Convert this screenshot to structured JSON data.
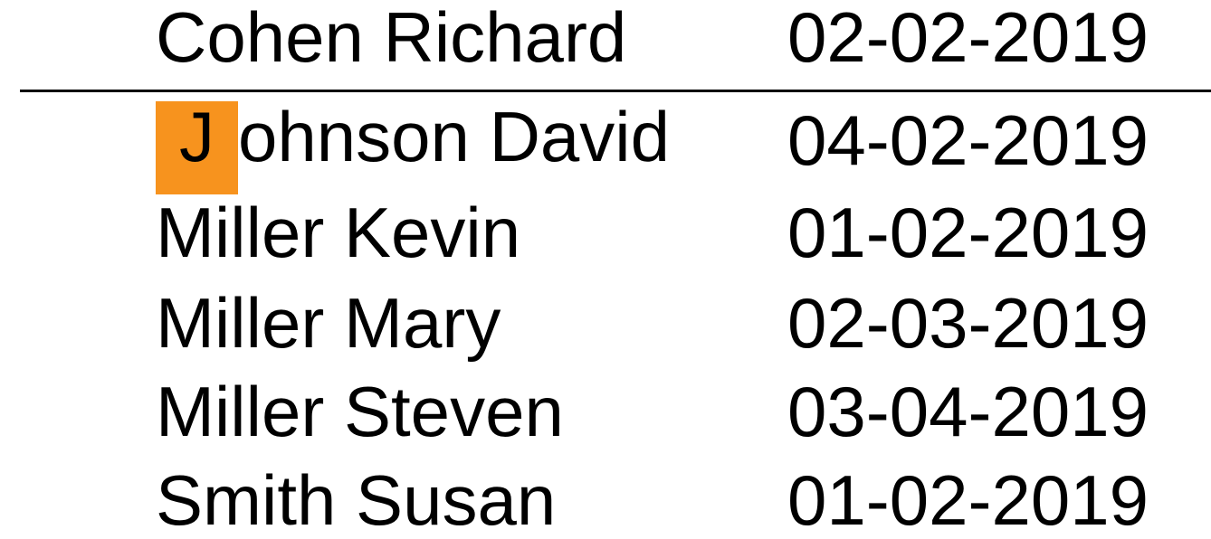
{
  "colors": {
    "highlight": "#f7931e",
    "text": "#000000"
  },
  "rows": [
    {
      "name": "Cohen Richard",
      "date": "02-02-2019"
    },
    {
      "name_first_letter": "J",
      "name_rest": "ohnson David",
      "date": "04-02-2019"
    },
    {
      "name": "Miller Kevin",
      "date": "01-02-2019"
    },
    {
      "name": "Miller Mary",
      "date": "02-03-2019"
    },
    {
      "name": "Miller Steven",
      "date": "03-04-2019"
    },
    {
      "name": "Smith Susan",
      "date": "01-02-2019"
    }
  ]
}
